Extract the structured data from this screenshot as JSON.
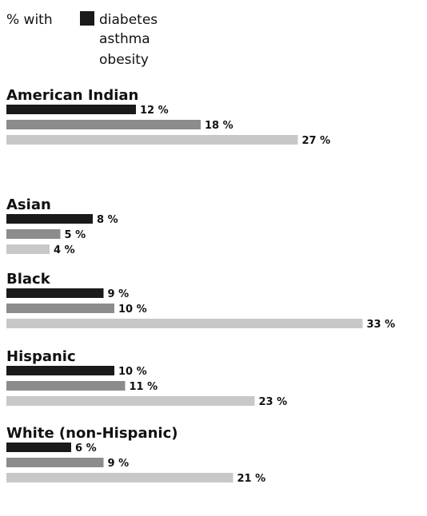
{
  "chart_data": {
    "type": "bar",
    "orientation": "horizontal",
    "legend_prefix": "% with",
    "series": [
      {
        "name": "diabetes",
        "color": "#1a1a1a"
      },
      {
        "name": "asthma",
        "color": "#8c8c8c"
      },
      {
        "name": "obesity",
        "color": "#c8c8c8"
      }
    ],
    "groups": [
      {
        "name": "American Indian",
        "values": [
          12,
          18,
          27
        ],
        "labels": [
          "12 %",
          "18 %",
          "27 %"
        ]
      },
      {
        "name": "Asian",
        "values": [
          8,
          5,
          4
        ],
        "labels": [
          "8 %",
          "5 %",
          "4 %"
        ]
      },
      {
        "name": "Black",
        "values": [
          9,
          10,
          33
        ],
        "labels": [
          "9 %",
          "10 %",
          "33 %"
        ]
      },
      {
        "name": "Hispanic",
        "values": [
          10,
          11,
          23
        ],
        "labels": [
          "10 %",
          "11 %",
          "23 %"
        ]
      },
      {
        "name": "White (non-Hispanic)",
        "values": [
          6,
          9,
          21
        ],
        "labels": [
          "6 %",
          "9 %",
          "21 %"
        ]
      }
    ],
    "xlim": [
      0,
      34
    ]
  }
}
